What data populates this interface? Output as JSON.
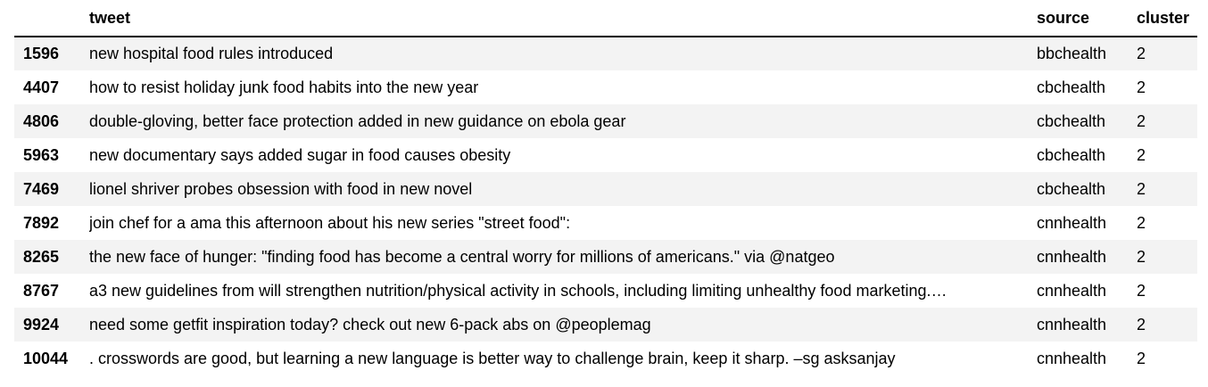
{
  "table": {
    "columns": [
      "",
      "tweet",
      "source",
      "cluster"
    ],
    "rows": [
      {
        "index": "1596",
        "tweet": "new hospital food rules introduced",
        "source": "bbchealth",
        "cluster": "2"
      },
      {
        "index": "4407",
        "tweet": "how to resist holiday junk food habits into the new year",
        "source": "cbchealth",
        "cluster": "2"
      },
      {
        "index": "4806",
        "tweet": "double-gloving, better face protection added in new guidance on ebola gear",
        "source": "cbchealth",
        "cluster": "2"
      },
      {
        "index": "5963",
        "tweet": "new documentary says added sugar in food causes obesity",
        "source": "cbchealth",
        "cluster": "2"
      },
      {
        "index": "7469",
        "tweet": "lionel shriver probes obsession with food in new novel",
        "source": "cbchealth",
        "cluster": "2"
      },
      {
        "index": "7892",
        "tweet": "join chef for a ama this afternoon about his new series \"street food\":",
        "source": "cnnhealth",
        "cluster": "2"
      },
      {
        "index": "8265",
        "tweet": "the new face of hunger: \"finding food has become a central worry for millions of americans.\" via @natgeo",
        "source": "cnnhealth",
        "cluster": "2"
      },
      {
        "index": "8767",
        "tweet": "a3 new guidelines from will strengthen nutrition/physical activity in schools, including limiting unhealthy food marketing.…",
        "source": "cnnhealth",
        "cluster": "2"
      },
      {
        "index": "9924",
        "tweet": "need some getfit inspiration today? check out new 6-pack abs on @peoplemag",
        "source": "cnnhealth",
        "cluster": "2"
      },
      {
        "index": "10044",
        "tweet": ". crosswords are good, but learning a new language is better way to challenge brain, keep it sharp. –sg asksanjay",
        "source": "cnnhealth",
        "cluster": "2"
      }
    ]
  }
}
